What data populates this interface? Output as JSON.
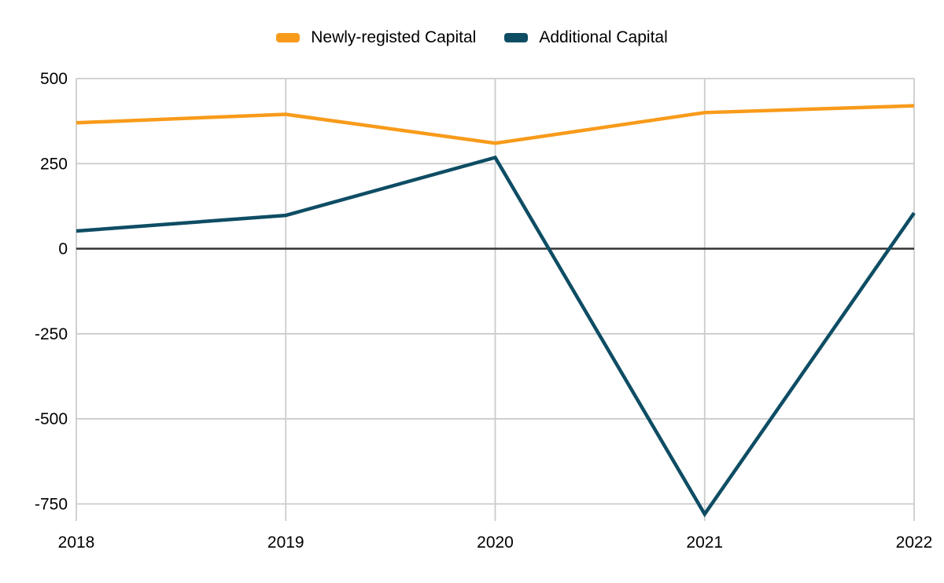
{
  "chart_data": {
    "type": "line",
    "title": "",
    "xlabel": "",
    "ylabel": "",
    "categories": [
      "2018",
      "2019",
      "2020",
      "2021",
      "2022"
    ],
    "series": [
      {
        "name": "Newly-registed Capital",
        "color": "#F89B1B",
        "values": [
          370,
          395,
          310,
          400,
          420
        ]
      },
      {
        "name": "Additional Capital",
        "color": "#0E4D64",
        "values": [
          52,
          98,
          268,
          -780,
          105
        ]
      }
    ],
    "ylim": [
      -800,
      500
    ],
    "y_ticks": [
      500,
      250,
      0,
      -250,
      -500,
      -750
    ],
    "grid": true,
    "legend_position": "top",
    "grid_color": "#CCCCCC",
    "zero_line_color": "#333333",
    "text_color": "#000000",
    "background": "#FFFFFF"
  }
}
